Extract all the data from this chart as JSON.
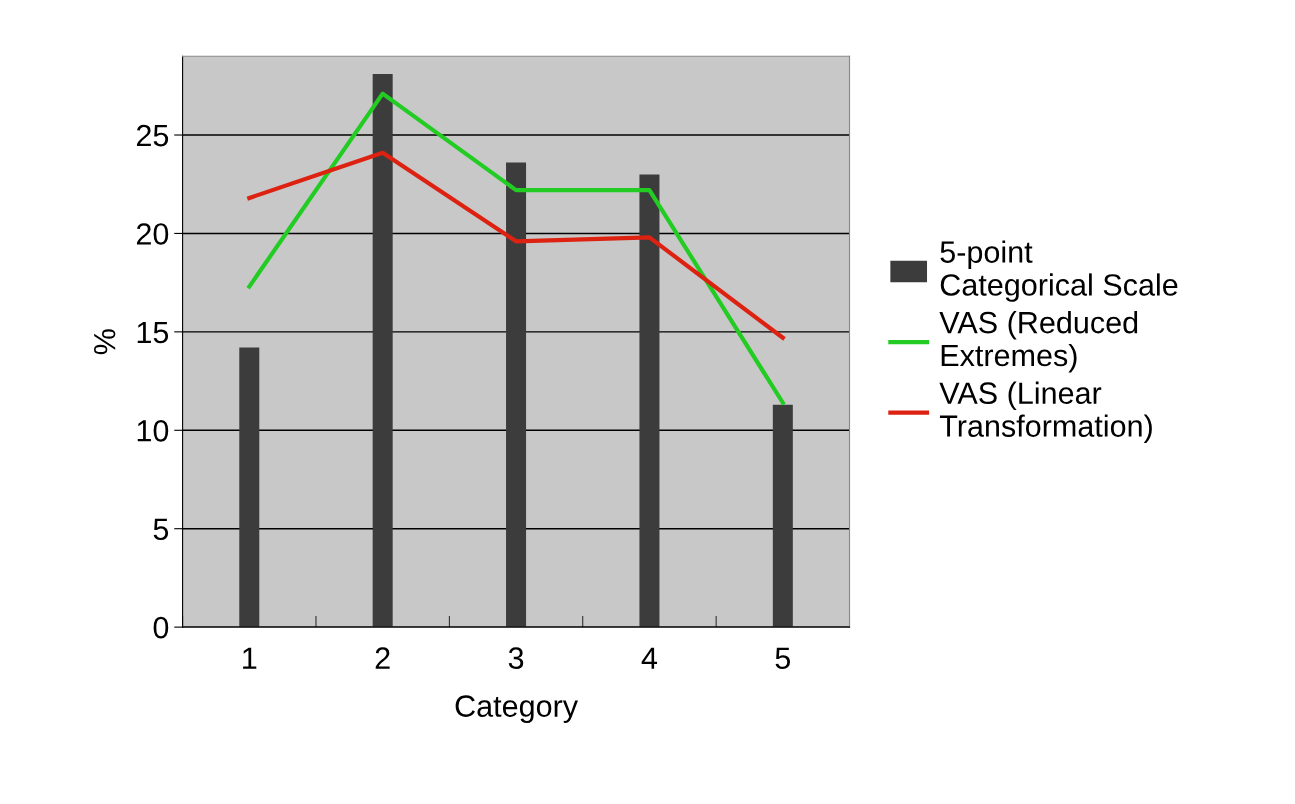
{
  "chart_data": {
    "type": "bar",
    "xlabel": "Category",
    "ylabel": "%",
    "categories": [
      "1",
      "2",
      "3",
      "4",
      "5"
    ],
    "series": [
      {
        "name": "5-point\nCategorical Scale",
        "color": "#3c3c3c",
        "values": [
          14.2,
          28.1,
          23.6,
          23.0,
          11.3
        ]
      },
      {
        "name": "VAS (Reduced\nExtremes)",
        "type": "line",
        "color": "#22cc22",
        "values": [
          17.3,
          27.1,
          22.2,
          22.2,
          11.4
        ]
      },
      {
        "name": "VAS (Linear\nTransformation)",
        "type": "line",
        "color": "#dd2211",
        "values": [
          21.8,
          24.1,
          19.6,
          19.8,
          14.7
        ]
      }
    ],
    "ylim": [
      0,
      29
    ],
    "yticks": [
      0,
      5,
      10,
      15,
      20,
      25
    ],
    "grid": "y",
    "legend": "right",
    "marker": "none",
    "line_style": "solid"
  }
}
